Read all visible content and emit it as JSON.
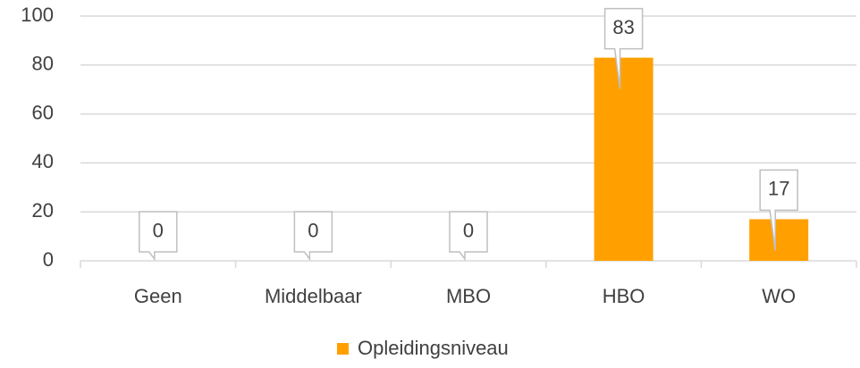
{
  "chart_data": {
    "type": "bar",
    "categories": [
      "Geen",
      "Middelbaar",
      "MBO",
      "HBO",
      "WO"
    ],
    "series": [
      {
        "name": "Opleidingsniveau",
        "color": "#ffa000",
        "values": [
          0,
          0,
          0,
          83,
          17
        ]
      }
    ],
    "ylim": [
      0,
      100
    ],
    "yticks": [
      0,
      20,
      40,
      60,
      80,
      100
    ],
    "grid": true,
    "legend": "bottom"
  }
}
